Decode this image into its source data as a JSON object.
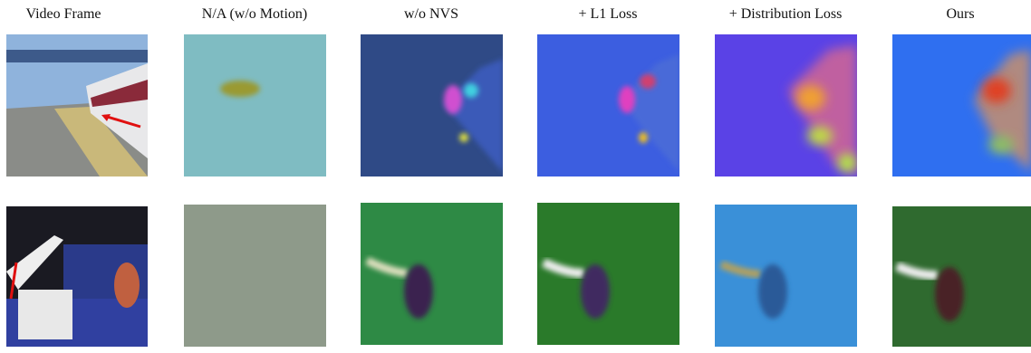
{
  "figure": {
    "columns": [
      "Video Frame",
      "N/A (w/o Motion)",
      "w/o NVS",
      "+ L1 Loss",
      "+ Distribution Loss",
      "Ours"
    ]
  }
}
